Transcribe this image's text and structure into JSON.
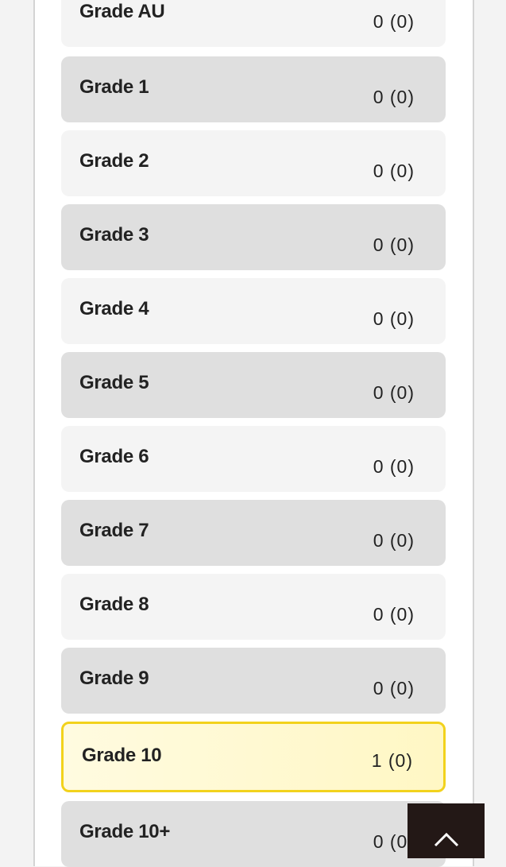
{
  "grades": [
    {
      "label": "Grade AU",
      "count": "0",
      "sub": "(0)"
    },
    {
      "label": "Grade 1",
      "count": "0",
      "sub": "(0)"
    },
    {
      "label": "Grade 2",
      "count": "0",
      "sub": "(0)"
    },
    {
      "label": "Grade 3",
      "count": "0",
      "sub": "(0)"
    },
    {
      "label": "Grade 4",
      "count": "0",
      "sub": "(0)"
    },
    {
      "label": "Grade 5",
      "count": "0",
      "sub": "(0)"
    },
    {
      "label": "Grade 6",
      "count": "0",
      "sub": "(0)"
    },
    {
      "label": "Grade 7",
      "count": "0",
      "sub": "(0)"
    },
    {
      "label": "Grade 8",
      "count": "0",
      "sub": "(0)"
    },
    {
      "label": "Grade 9",
      "count": "0",
      "sub": "(0)"
    },
    {
      "label": "Grade 10",
      "count": "1",
      "sub": "(0)",
      "selected": true
    },
    {
      "label": "Grade 10+",
      "count": "0",
      "sub": "(0)"
    }
  ],
  "colors": {
    "selected_border": "#f2d21c",
    "selected_bg": "#fff8cc",
    "row_light": "#f4f4f4",
    "row_dark": "#dfdfdf",
    "scroll_top_bg": "#231816"
  },
  "scroll_top_icon": "chevron-up-icon"
}
